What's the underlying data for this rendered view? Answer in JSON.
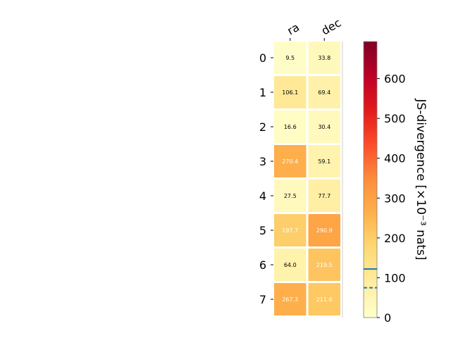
{
  "chart_data": {
    "type": "heatmap",
    "columns": [
      "ra",
      "dec"
    ],
    "rows": [
      "0",
      "1",
      "2",
      "3",
      "4",
      "5",
      "6",
      "7"
    ],
    "values": [
      [
        9.5,
        33.8
      ],
      [
        106.1,
        69.4
      ],
      [
        16.6,
        30.4
      ],
      [
        270.4,
        59.1
      ],
      [
        27.5,
        77.7
      ],
      [
        197.7,
        290.9
      ],
      [
        64.0,
        219.5
      ],
      [
        267.3,
        211.6
      ]
    ],
    "value_labels": [
      [
        "9.5",
        "33.8"
      ],
      [
        "106.1",
        "69.4"
      ],
      [
        "16.6",
        "30.4"
      ],
      [
        "270.4",
        "59.1"
      ],
      [
        "27.5",
        "77.7"
      ],
      [
        "197.7",
        "290.9"
      ],
      [
        "64.0",
        "219.5"
      ],
      [
        "267.3",
        "211.6"
      ]
    ],
    "colorbar": {
      "label": "JS-divergence [×10⁻³ nats]",
      "range": [
        0,
        693
      ],
      "ticks": [
        0,
        100,
        200,
        300,
        400,
        500,
        600
      ],
      "tick_labels": [
        "0",
        "100",
        "200",
        "300",
        "400",
        "500",
        "600"
      ],
      "colormap": "YlOrRd",
      "markers": [
        {
          "value": 122,
          "style": "solid",
          "color": "#1f77b4"
        },
        {
          "value": 75,
          "style": "dashed",
          "color": "#1f77b4"
        }
      ]
    }
  }
}
